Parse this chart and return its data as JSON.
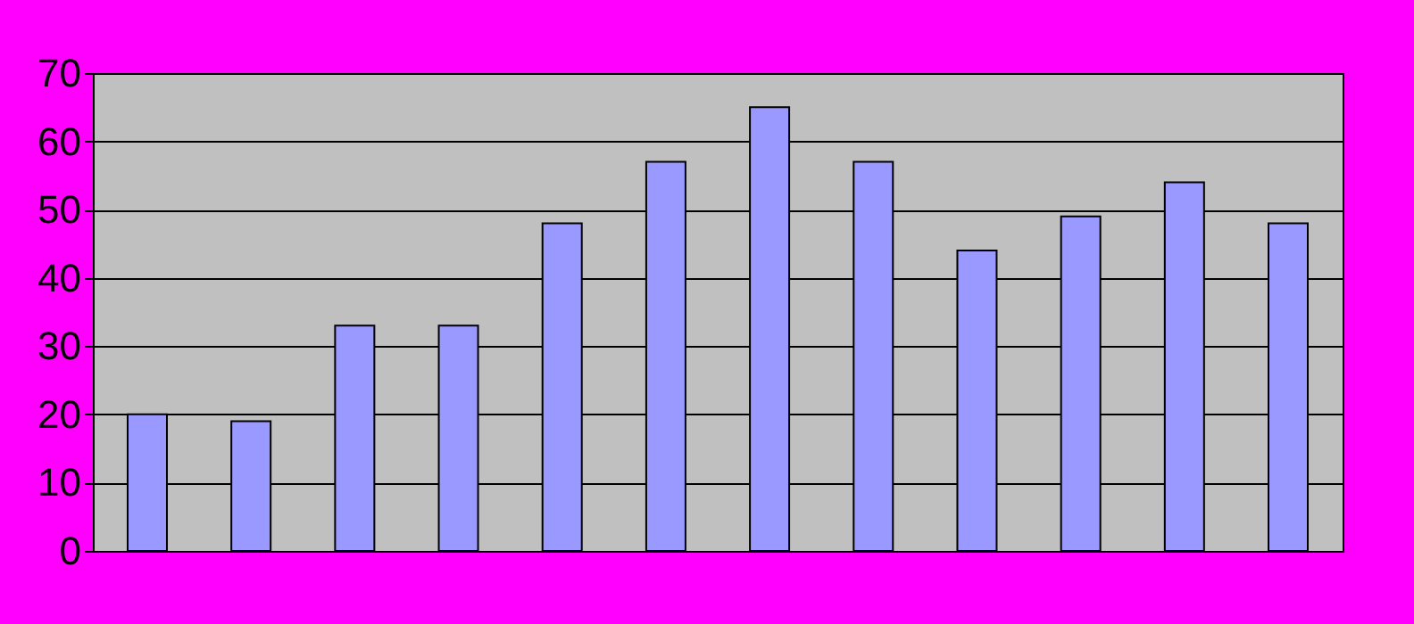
{
  "chart_data": {
    "type": "bar",
    "categories": [
      null,
      null,
      null,
      null,
      null,
      null,
      null,
      null,
      null,
      null,
      null,
      null
    ],
    "values": [
      20,
      19,
      33,
      33,
      48,
      57,
      65,
      57,
      44,
      49,
      54,
      48
    ],
    "color": "#9999ff",
    "ylim": [
      0,
      70
    ],
    "yticks": [
      0,
      10,
      20,
      30,
      40,
      50,
      60,
      70
    ],
    "grid": "y",
    "tick_labels": "y"
  }
}
